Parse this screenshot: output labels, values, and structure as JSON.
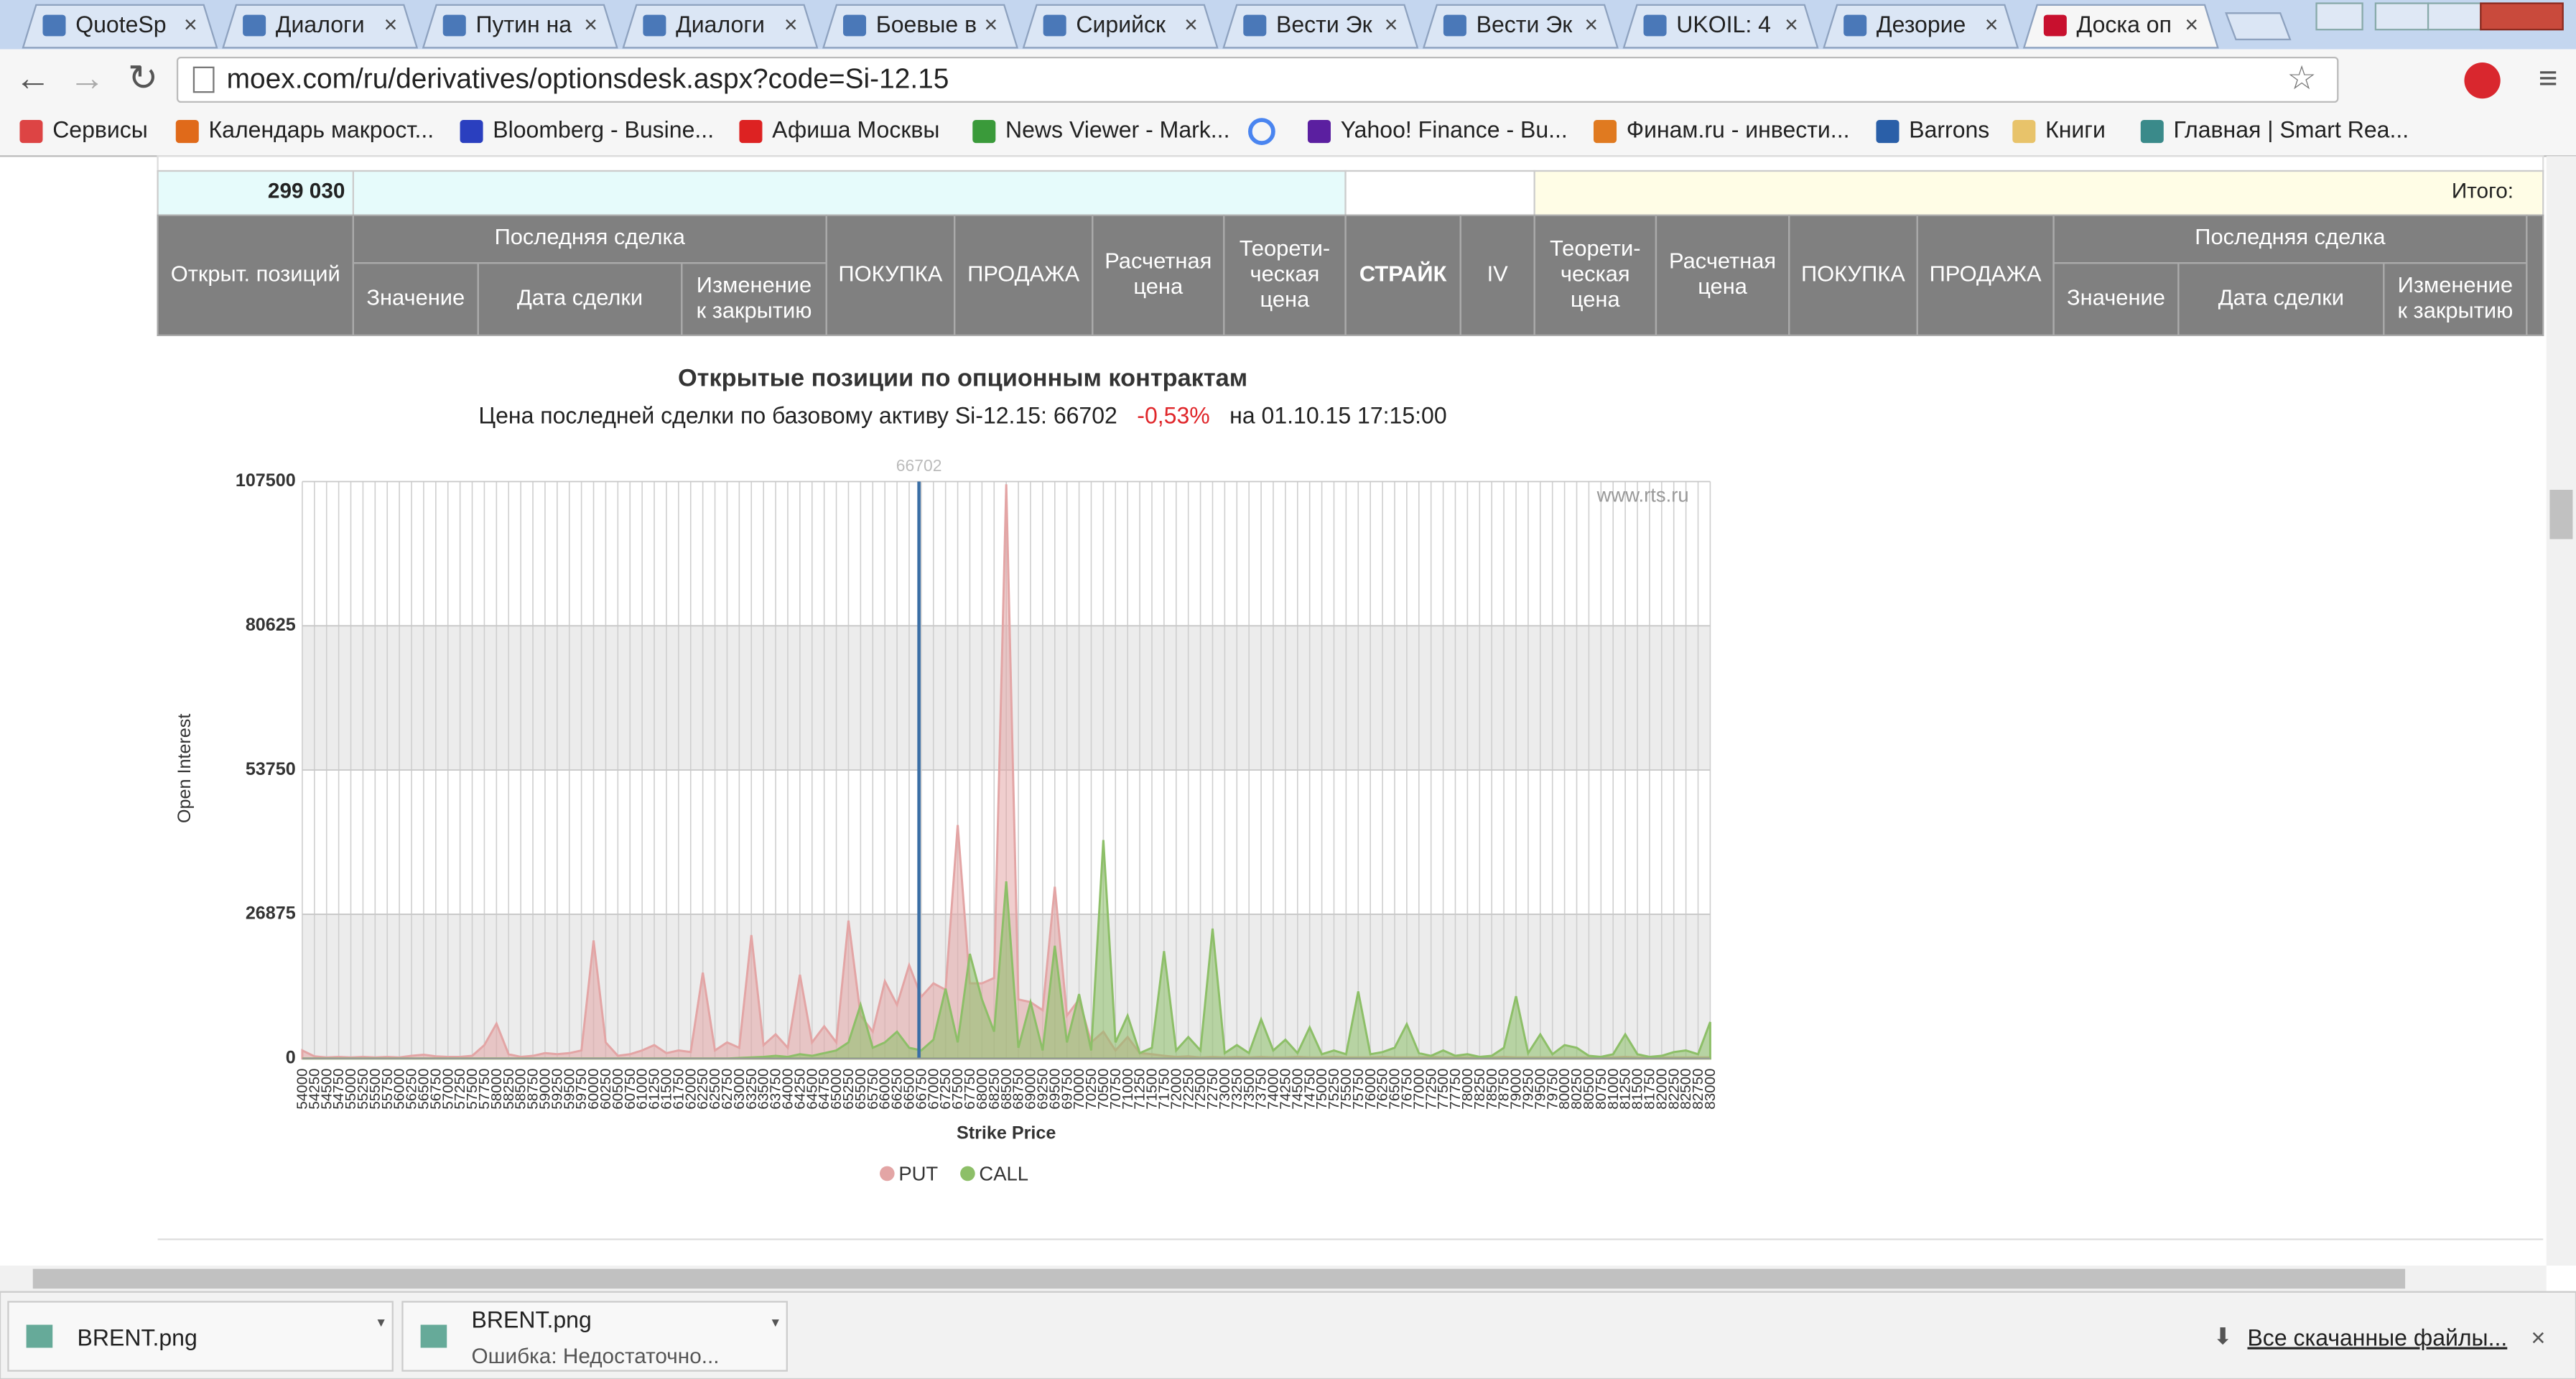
{
  "browser": {
    "tabs": [
      "QuoteSp",
      "Диалоги",
      "Путин на",
      "Диалоги",
      "Боевые в",
      "Сирийск",
      "Вести Эк",
      "Вести Эк",
      "UKOIL: 4",
      "Дезорие",
      "Доска оп"
    ],
    "url": "moex.com/ru/derivatives/optionsdesk.aspx?code=Si-12.15",
    "bookmarks": [
      "Сервисы",
      "Календарь макрост...",
      "Bloomberg - Busine...",
      "Афиша Москвы",
      "News Viewer - Mark...",
      "Yahoo! Finance - Bu...",
      "Финам.ru - инвести...",
      "Barrons",
      "Книги",
      "Главная | Smart Rea..."
    ]
  },
  "table": {
    "total_value": "299 030",
    "total_label": "Итого:",
    "header_groups": [
      "Последняя сделка",
      "Последняя сделка"
    ],
    "header_cells": [
      [
        "Открыт. позиций"
      ],
      [
        "Значение"
      ],
      [
        "Дата сделки"
      ],
      [
        "Изменение",
        "к закрытию"
      ],
      [
        "ПОКУПКА"
      ],
      [
        "ПРОДАЖА"
      ],
      [
        "Расчетная",
        "цена"
      ],
      [
        "Теорети-",
        "ческая",
        "цена"
      ],
      [
        "СТРАЙК"
      ],
      [
        "IV"
      ],
      [
        "Теорети-",
        "ческая",
        "цена"
      ],
      [
        "Расчетная",
        "цена"
      ],
      [
        "ПОКУПКА"
      ],
      [
        "ПРОДАЖА"
      ],
      [
        "Значение"
      ],
      [
        "Дата сделки"
      ],
      [
        "Изменение",
        "к закрытию"
      ]
    ]
  },
  "chart_data": {
    "type": "area",
    "title": "Открытые позиции по опционным контрактам",
    "subtitle": [
      "Цена последней сделки по базовому активу Si-12.15: 66702",
      "-0,53%",
      "на 01.10.15 17:15:00"
    ],
    "watermark": "www.rts.ru",
    "x_label": "Strike Price",
    "y_label": "Open Interest",
    "x": [
      54000,
      54250,
      54500,
      54750,
      55000,
      55250,
      55500,
      55750,
      56000,
      56250,
      56500,
      56750,
      57000,
      57250,
      57500,
      57750,
      58000,
      58250,
      58500,
      58750,
      59000,
      59250,
      59500,
      59750,
      60000,
      60250,
      60500,
      60750,
      61000,
      61250,
      61500,
      61750,
      62000,
      62250,
      62500,
      62750,
      63000,
      63250,
      63500,
      63750,
      64000,
      64250,
      64500,
      64750,
      65000,
      65250,
      65500,
      65750,
      66000,
      66250,
      66500,
      66750,
      67000,
      67250,
      67500,
      67750,
      68000,
      68250,
      68500,
      68750,
      69000,
      69250,
      69500,
      69750,
      70000,
      70250,
      70500,
      70750,
      71000,
      71250,
      71500,
      71750,
      72000,
      72250,
      72500,
      72750,
      73000,
      73250,
      73500,
      73750,
      74000,
      74250,
      74500,
      74750,
      75000,
      75250,
      75500,
      75750,
      76000,
      76250,
      76500,
      76750,
      77000,
      77250,
      77500,
      77750,
      78000,
      78250,
      78500,
      78750,
      79000,
      79250,
      79500,
      79750,
      80000,
      80250,
      80500,
      80750,
      81000,
      81250,
      81500,
      81750,
      82000,
      82250,
      82500,
      82750,
      83000
    ],
    "xlim": [
      54000,
      83000
    ],
    "ylim": [
      0,
      107500
    ],
    "yticks": [
      0,
      26875,
      53750,
      80625,
      107500
    ],
    "vline": 66702,
    "vline_color": "#3a6ea5",
    "grid": true,
    "alternate_bands": true,
    "legend": "bottom",
    "series": [
      {
        "name": "PUT",
        "color": "#e3a5a5",
        "values": [
          1500,
          400,
          200,
          300,
          200,
          300,
          200,
          300,
          200,
          500,
          700,
          400,
          300,
          300,
          500,
          2500,
          6500,
          800,
          300,
          500,
          1000,
          800,
          1000,
          1500,
          22000,
          3000,
          500,
          800,
          1500,
          2500,
          1000,
          1500,
          1200,
          16000,
          1500,
          3000,
          2000,
          23000,
          2500,
          4500,
          2000,
          15600,
          3000,
          6000,
          3000,
          25700,
          8000,
          5000,
          14400,
          10000,
          17400,
          11500,
          14000,
          12800,
          43500,
          14000,
          14000,
          15000,
          107000,
          11000,
          10500,
          9000,
          32000,
          8000,
          11000,
          3000,
          5000,
          1500,
          4000,
          1000,
          800,
          500,
          300,
          400,
          200,
          300,
          200,
          300,
          200,
          300,
          200,
          200,
          300,
          200,
          200,
          300,
          200,
          200,
          200,
          300,
          200,
          200,
          200,
          300,
          200,
          200,
          200,
          200,
          200,
          300,
          200,
          200,
          200,
          200,
          200,
          200,
          200,
          200,
          200,
          300,
          200,
          200,
          200,
          200,
          200,
          200,
          200
        ]
      },
      {
        "name": "CALL",
        "color": "#8dbf68",
        "values": [
          0,
          0,
          0,
          0,
          0,
          0,
          0,
          0,
          0,
          0,
          0,
          0,
          0,
          0,
          0,
          0,
          0,
          0,
          0,
          0,
          0,
          0,
          0,
          0,
          0,
          0,
          0,
          0,
          0,
          0,
          0,
          0,
          0,
          0,
          0,
          0,
          100,
          200,
          300,
          500,
          300,
          800,
          500,
          1000,
          1500,
          3000,
          10000,
          2000,
          3000,
          5000,
          2000,
          1500,
          3500,
          13000,
          3000,
          19500,
          11000,
          5000,
          33000,
          2000,
          10500,
          1500,
          21000,
          3000,
          12000,
          1500,
          40700,
          3000,
          8000,
          1000,
          2000,
          20000,
          1500,
          4000,
          1500,
          24200,
          1000,
          2500,
          1000,
          7300,
          1500,
          3500,
          1000,
          5800,
          800,
          1500,
          800,
          12500,
          800,
          1200,
          2000,
          6400,
          1000,
          500,
          1500,
          500,
          800,
          300,
          500,
          2000,
          11600,
          1000,
          4500,
          800,
          2500,
          2000,
          500,
          300,
          800,
          4500,
          800,
          300,
          500,
          1200,
          1500,
          800,
          6800
        ]
      }
    ]
  },
  "downloads": {
    "items": [
      {
        "name": "BRENT.png"
      },
      {
        "name": "BRENT.png",
        "status": "Ошибка: Недостаточно..."
      }
    ],
    "all_link": "Все скачанные файлы..."
  }
}
